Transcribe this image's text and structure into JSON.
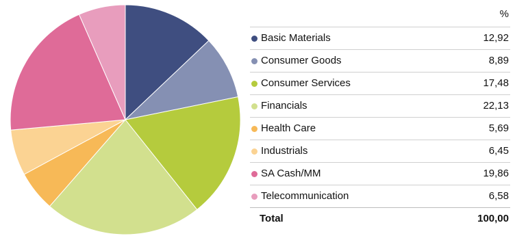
{
  "chart_data": {
    "type": "pie",
    "unit_header": "%",
    "slices": [
      {
        "label": "Basic Materials",
        "value": 12.92,
        "display": "12,92",
        "color": "#3f4e80"
      },
      {
        "label": "Consumer Goods",
        "value": 8.89,
        "display": "8,89",
        "color": "#8590b3"
      },
      {
        "label": "Consumer Services",
        "value": 17.48,
        "display": "17,48",
        "color": "#b5cb3d"
      },
      {
        "label": "Financials",
        "value": 22.13,
        "display": "22,13",
        "color": "#d2e08e"
      },
      {
        "label": "Health Care",
        "value": 5.69,
        "display": "5,69",
        "color": "#f7b957"
      },
      {
        "label": "Industrials",
        "value": 6.45,
        "display": "6,45",
        "color": "#fbd393"
      },
      {
        "label": "SA Cash/MM",
        "value": 19.86,
        "display": "19,86",
        "color": "#df6b98"
      },
      {
        "label": "Telecommunication",
        "value": 6.58,
        "display": "6,58",
        "color": "#e89dbd"
      }
    ],
    "total": {
      "label": "Total",
      "display": "100,00"
    }
  }
}
